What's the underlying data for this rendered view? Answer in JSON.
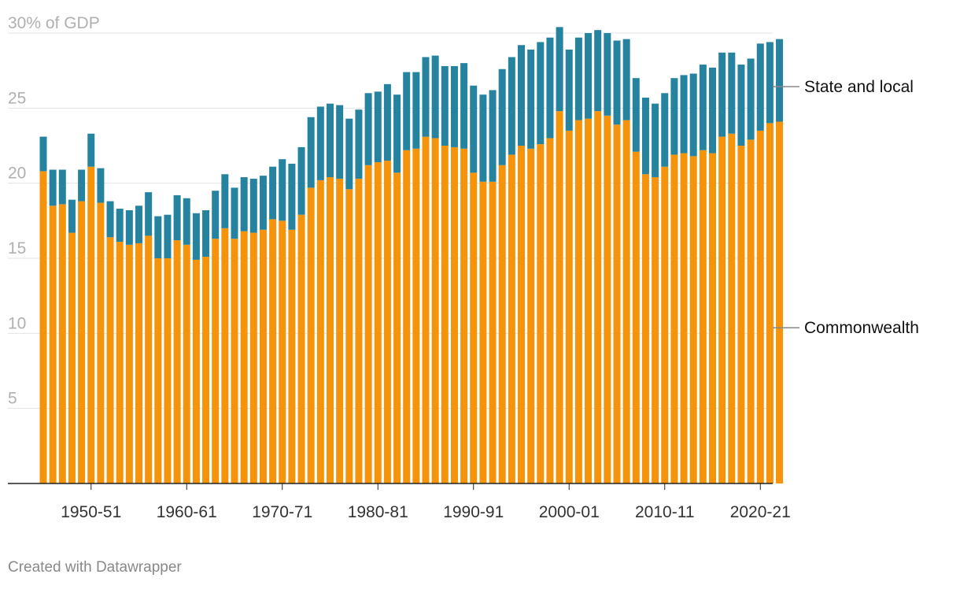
{
  "chart_data": {
    "type": "bar",
    "stacked": true,
    "ylabel": "% of GDP",
    "ylim": [
      0,
      30
    ],
    "yticks": [
      {
        "value": 30,
        "label": "30% of GDP"
      },
      {
        "value": 25,
        "label": "25"
      },
      {
        "value": 20,
        "label": "20"
      },
      {
        "value": 15,
        "label": "15"
      },
      {
        "value": 10,
        "label": "10"
      },
      {
        "value": 5,
        "label": "5"
      }
    ],
    "xtick_labels": [
      "1950-51",
      "1960-61",
      "1970-71",
      "1980-81",
      "1990-91",
      "2000-01",
      "2010-11",
      "2020-21"
    ],
    "grid": true,
    "colors": {
      "Commonwealth": "#f5930b",
      "State and local": "#2583a0"
    },
    "categories": [
      "1945-46",
      "1946-47",
      "1947-48",
      "1948-49",
      "1949-50",
      "1950-51",
      "1951-52",
      "1952-53",
      "1953-54",
      "1954-55",
      "1955-56",
      "1956-57",
      "1957-58",
      "1958-59",
      "1959-60",
      "1960-61",
      "1961-62",
      "1962-63",
      "1963-64",
      "1964-65",
      "1965-66",
      "1966-67",
      "1967-68",
      "1968-69",
      "1969-70",
      "1970-71",
      "1971-72",
      "1972-73",
      "1973-74",
      "1974-75",
      "1975-76",
      "1976-77",
      "1977-78",
      "1978-79",
      "1979-80",
      "1980-81",
      "1981-82",
      "1982-83",
      "1983-84",
      "1984-85",
      "1985-86",
      "1986-87",
      "1987-88",
      "1988-89",
      "1989-90",
      "1990-91",
      "1991-92",
      "1992-93",
      "1993-94",
      "1994-95",
      "1995-96",
      "1996-97",
      "1997-98",
      "1998-99",
      "1999-00",
      "2000-01",
      "2001-02",
      "2002-03",
      "2003-04",
      "2004-05",
      "2005-06",
      "2006-07",
      "2007-08",
      "2008-09",
      "2009-10",
      "2010-11",
      "2011-12",
      "2012-13",
      "2013-14",
      "2014-15",
      "2015-16",
      "2016-17",
      "2017-18",
      "2018-19",
      "2019-20",
      "2020-21",
      "2021-22",
      "2022-23"
    ],
    "series": [
      {
        "name": "Commonwealth",
        "values": [
          20.8,
          18.5,
          18.6,
          16.7,
          18.8,
          21.1,
          18.7,
          16.4,
          16.1,
          15.9,
          16.0,
          16.5,
          15.0,
          15.0,
          16.2,
          15.9,
          14.9,
          15.1,
          16.3,
          17.0,
          16.3,
          16.8,
          16.7,
          16.9,
          17.6,
          17.5,
          16.9,
          17.9,
          19.7,
          20.2,
          20.4,
          20.3,
          19.6,
          20.3,
          21.2,
          21.4,
          21.5,
          20.7,
          22.2,
          22.3,
          23.1,
          23.0,
          22.5,
          22.4,
          22.3,
          20.7,
          20.1,
          20.1,
          21.2,
          21.9,
          22.5,
          22.3,
          22.6,
          23.0,
          24.8,
          23.5,
          24.2,
          24.3,
          24.8,
          24.5,
          23.9,
          24.2,
          22.1,
          20.6,
          20.4,
          21.1,
          21.9,
          22.0,
          21.8,
          22.2,
          22.0,
          23.1,
          23.3,
          22.5,
          22.9,
          23.5,
          24.0,
          24.1
        ]
      },
      {
        "name": "State and local",
        "values": [
          2.3,
          2.4,
          2.3,
          2.2,
          2.1,
          2.2,
          2.3,
          2.4,
          2.2,
          2.3,
          2.5,
          2.9,
          2.8,
          2.9,
          3.0,
          3.1,
          3.1,
          3.1,
          3.2,
          3.6,
          3.4,
          3.6,
          3.6,
          3.6,
          3.5,
          4.1,
          4.4,
          4.5,
          4.7,
          4.9,
          4.9,
          4.9,
          4.7,
          4.6,
          4.8,
          4.7,
          5.1,
          5.2,
          5.2,
          5.1,
          5.3,
          5.5,
          5.3,
          5.4,
          5.7,
          5.8,
          5.8,
          6.1,
          6.4,
          6.5,
          6.7,
          6.6,
          6.8,
          6.7,
          5.6,
          5.4,
          5.5,
          5.7,
          5.4,
          5.5,
          5.6,
          5.4,
          4.9,
          5.1,
          4.9,
          4.9,
          5.1,
          5.2,
          5.5,
          5.7,
          5.7,
          5.6,
          5.4,
          5.4,
          5.4,
          5.8,
          5.4,
          5.5
        ]
      }
    ],
    "legend": {
      "placement": "right-inline"
    }
  },
  "footer": {
    "credit": "Created with Datawrapper"
  }
}
